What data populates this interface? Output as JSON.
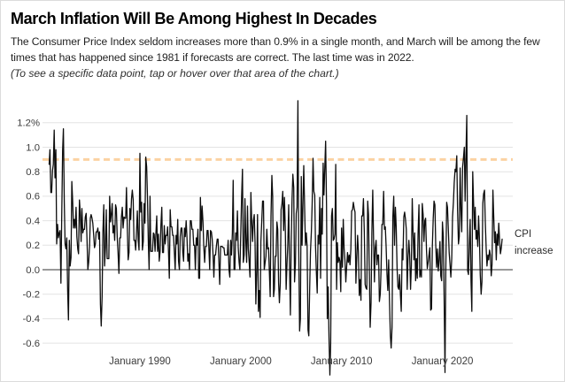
{
  "header": {
    "title": "March Inflation Will Be Among Highest In Decades",
    "subtitle": "The Consumer Price Index seldom increases more than 0.9% in a single month, and March will be among the few times that has happened since 1981 if forecasts are correct. The last time was in 2022.",
    "note": "(To see a specific data point, tap or hover over that area of the chart.)"
  },
  "chart_data": {
    "type": "line",
    "title": "March Inflation Will Be Among Highest In Decades",
    "xlabel": "",
    "ylabel": "",
    "annotation": "CPI\nincrease",
    "grid": true,
    "ylim": [
      -0.9,
      1.45
    ],
    "line_color": "#0d0d0d",
    "zero_line_color": "#333333",
    "grid_color": "#e3e3e3",
    "threshold": {
      "value": 0.9,
      "style": "dashed",
      "color": "#fbd2a2"
    },
    "y_ticks": [
      {
        "label": "1.2%",
        "value": 1.2
      },
      {
        "label": "1.0",
        "value": 1.0
      },
      {
        "label": "0.8",
        "value": 0.8
      },
      {
        "label": "0.6",
        "value": 0.6
      },
      {
        "label": "0.4",
        "value": 0.4
      },
      {
        "label": "0.2",
        "value": 0.2
      },
      {
        "label": "0.0",
        "value": 0.0
      },
      {
        "label": "-0.2",
        "value": -0.2
      },
      {
        "label": "-0.4",
        "value": -0.4
      },
      {
        "label": "-0.6",
        "value": -0.6
      }
    ],
    "x_ticks": [
      {
        "label": "January 1990",
        "year": 1990,
        "month": 1
      },
      {
        "label": "January 2000",
        "year": 2000,
        "month": 1
      },
      {
        "label": "January 2010",
        "year": 2010,
        "month": 1
      },
      {
        "label": "January 2020",
        "year": 2020,
        "month": 1
      }
    ],
    "series": [
      {
        "name": "CPI monthly percent increase",
        "frequency": "monthly",
        "start_year": 1981,
        "start_month": 1,
        "values": [
          0.86,
          0.98,
          0.63,
          0.63,
          0.81,
          0.86,
          1.14,
          0.75,
          0.98,
          0.21,
          0.37,
          0.26,
          0.3,
          0.32,
          -0.11,
          0.43,
          0.97,
          1.15,
          0.55,
          0.21,
          0.17,
          0.26,
          -0.17,
          -0.41,
          0.24,
          0.03,
          0.1,
          0.72,
          0.55,
          0.34,
          0.41,
          0.34,
          0.51,
          0.27,
          0.17,
          0.13,
          0.57,
          0.47,
          0.23,
          0.5,
          0.3,
          0.33,
          0.33,
          0.43,
          0.46,
          0.26,
          0.0,
          0.06,
          0.19,
          0.42,
          0.45,
          0.42,
          0.38,
          0.28,
          0.18,
          0.21,
          0.31,
          0.31,
          0.34,
          0.25,
          0.31,
          -0.28,
          -0.46,
          -0.22,
          0.31,
          0.53,
          0.03,
          0.18,
          0.49,
          0.09,
          0.09,
          0.09,
          0.6,
          0.39,
          0.45,
          0.54,
          0.3,
          0.36,
          0.24,
          0.53,
          0.5,
          0.26,
          0.14,
          -0.03,
          0.26,
          0.26,
          0.43,
          0.51,
          0.34,
          0.43,
          0.42,
          0.42,
          0.67,
          0.33,
          0.08,
          0.14,
          0.5,
          0.41,
          0.58,
          0.65,
          0.57,
          0.24,
          0.24,
          0.16,
          0.32,
          0.48,
          0.24,
          0.16,
          0.95,
          0.47,
          0.55,
          0.16,
          0.23,
          0.54,
          0.38,
          0.92,
          0.84,
          0.6,
          0.22,
          0.0,
          0.6,
          0.15,
          0.15,
          0.15,
          0.3,
          0.29,
          0.15,
          0.29,
          0.44,
          0.15,
          0.29,
          0.07,
          0.15,
          0.36,
          0.51,
          0.14,
          0.14,
          0.36,
          0.21,
          0.28,
          0.28,
          0.35,
          0.14,
          -0.07,
          0.49,
          0.35,
          0.35,
          0.28,
          0.28,
          0.14,
          0.0,
          0.28,
          0.21,
          0.41,
          0.07,
          0.0,
          0.27,
          0.34,
          0.34,
          0.14,
          0.07,
          0.34,
          0.27,
          0.4,
          0.27,
          0.07,
          0.13,
          0.0,
          0.4,
          0.4,
          0.33,
          0.33,
          0.2,
          0.2,
          0.0,
          0.26,
          0.2,
          0.33,
          -0.07,
          -0.07,
          0.59,
          0.32,
          0.52,
          0.39,
          0.19,
          0.06,
          0.19,
          0.19,
          0.32,
          0.32,
          0.19,
          0.0,
          0.32,
          0.31,
          0.25,
          0.12,
          -0.06,
          0.12,
          0.12,
          0.19,
          0.25,
          0.25,
          0.06,
          -0.12,
          0.19,
          0.19,
          0.19,
          0.18,
          0.18,
          0.12,
          0.12,
          0.12,
          0.12,
          0.24,
          0.0,
          -0.06,
          0.24,
          0.12,
          0.3,
          0.73,
          0.0,
          0.0,
          0.3,
          0.24,
          0.48,
          0.18,
          0.06,
          0.0,
          0.3,
          0.59,
          0.82,
          0.06,
          0.12,
          0.58,
          0.23,
          0.06,
          0.52,
          0.17,
          0.06,
          -0.06,
          0.63,
          0.4,
          0.23,
          0.4,
          0.45,
          0.22,
          -0.28,
          0.0,
          0.45,
          -0.34,
          -0.17,
          -0.39,
          0.23,
          0.4,
          0.56,
          0.56,
          0.0,
          0.06,
          0.11,
          0.33,
          0.17,
          0.18,
          0.0,
          -0.22,
          0.44,
          0.77,
          0.6,
          -0.22,
          -0.16,
          0.11,
          0.11,
          0.39,
          0.33,
          -0.11,
          -0.27,
          -0.11,
          0.49,
          0.54,
          0.64,
          0.32,
          0.59,
          0.32,
          -0.16,
          0.05,
          0.21,
          0.53,
          0.05,
          -0.37,
          0.21,
          0.58,
          0.78,
          0.67,
          -0.1,
          0.05,
          0.46,
          0.51,
          1.38,
          0.2,
          -0.5,
          -0.4,
          0.76,
          0.2,
          0.55,
          0.85,
          0.5,
          0.2,
          0.3,
          0.19,
          -0.49,
          -0.54,
          -0.15,
          0.15,
          0.31,
          0.54,
          0.91,
          0.64,
          0.61,
          0.19,
          -0.03,
          -0.19,
          0.28,
          0.21,
          0.59,
          -0.07,
          0.5,
          0.29,
          0.87,
          0.61,
          0.84,
          1.05,
          0.53,
          -0.4,
          -0.14,
          -0.55,
          -0.86,
          -0.6,
          0.44,
          0.5,
          0.24,
          0.25,
          0.29,
          0.86,
          -0.16,
          0.22,
          0.06,
          0.1,
          0.07,
          -0.18,
          0.34,
          0.02,
          0.41,
          0.17,
          0.08,
          -0.1,
          0.02,
          0.14,
          0.06,
          0.12,
          0.04,
          0.17,
          0.48,
          0.49,
          0.55,
          0.5,
          0.47,
          -0.11,
          0.09,
          0.28,
          0.15,
          -0.21,
          -0.08,
          -0.25,
          0.44,
          0.44,
          0.58,
          0.3,
          -0.12,
          -0.15,
          -0.16,
          0.56,
          0.45,
          -0.04,
          -0.47,
          -0.27,
          0.3,
          0.65,
          0.26,
          -0.1,
          0.18,
          0.24,
          0.04,
          0.12,
          0.12,
          -0.26,
          -0.2,
          0.0,
          0.37,
          0.37,
          0.64,
          0.33,
          0.35,
          0.19,
          -0.04,
          -0.17,
          0.08,
          -0.25,
          -0.54,
          -0.64,
          -0.47,
          0.43,
          0.6,
          0.2,
          0.51,
          0.35,
          0.01,
          -0.14,
          -0.16,
          -0.04,
          -0.21,
          -0.34,
          0.17,
          0.08,
          0.43,
          0.47,
          0.41,
          0.33,
          -0.16,
          0.09,
          0.24,
          0.12,
          -0.16,
          0.03,
          0.58,
          0.31,
          0.08,
          0.3,
          -0.09,
          0.09,
          -0.07,
          0.3,
          0.53,
          -0.06,
          0.0,
          -0.06,
          0.54,
          0.45,
          0.23,
          0.4,
          0.42,
          0.16,
          0.01,
          0.06,
          0.12,
          0.18,
          -0.33,
          -0.32,
          0.19,
          0.42,
          0.56,
          0.53,
          0.21,
          0.02,
          0.17,
          -0.01,
          0.08,
          0.23,
          -0.05,
          -0.09,
          0.39,
          0.27,
          -0.22,
          -0.84,
          0.0,
          0.55,
          0.51,
          0.32,
          0.14,
          0.04,
          -0.06,
          0.09,
          0.43,
          0.55,
          0.71,
          0.82,
          0.8,
          0.93,
          0.48,
          0.21,
          0.27,
          0.83,
          0.49,
          0.31,
          0.84,
          0.91,
          1.0,
          0.56,
          0.95,
          1.26,
          -0.01,
          -0.04,
          0.22,
          0.41,
          -0.1,
          -0.34,
          0.8,
          0.56,
          0.33,
          0.51,
          0.25,
          0.32,
          0.19,
          0.44,
          0.25,
          -0.04,
          -0.2,
          -0.1,
          0.54,
          0.62,
          0.65,
          0.39,
          0.17,
          0.03,
          0.12,
          0.08,
          0.16,
          0.12,
          -0.05,
          0.04,
          0.65,
          0.44,
          0.22,
          0.31,
          0.08,
          0.29,
          0.2,
          0.38,
          0.23,
          0.13,
          0.18,
          0.25
        ]
      }
    ]
  }
}
